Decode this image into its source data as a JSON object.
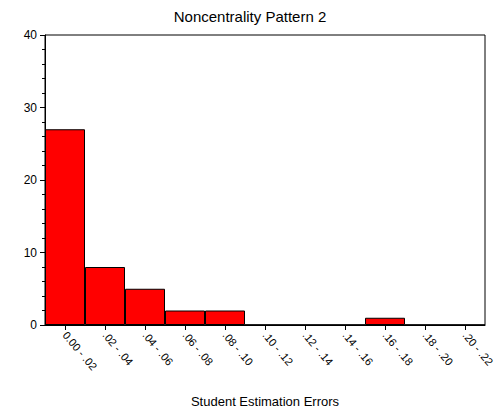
{
  "chart_data": {
    "type": "bar",
    "title": "Noncentrality Pattern 2",
    "x_label": "Student Estimation Errors",
    "categories": [
      "0.00 - .02",
      ".02 - .04",
      ".04 - .06",
      ".06 - .08",
      ".08 - .10",
      ".10 - .12",
      ".12 - .14",
      ".14 - .16",
      ".16 - .18",
      ".18 - .20",
      ".20 - .22"
    ],
    "values": [
      27,
      8,
      5,
      2,
      2,
      0,
      0,
      0,
      1,
      0,
      0
    ],
    "color": "#ff0000",
    "ylim": [
      0,
      40
    ],
    "yticks": [
      0,
      10,
      20,
      30,
      40
    ],
    "grid": false
  }
}
